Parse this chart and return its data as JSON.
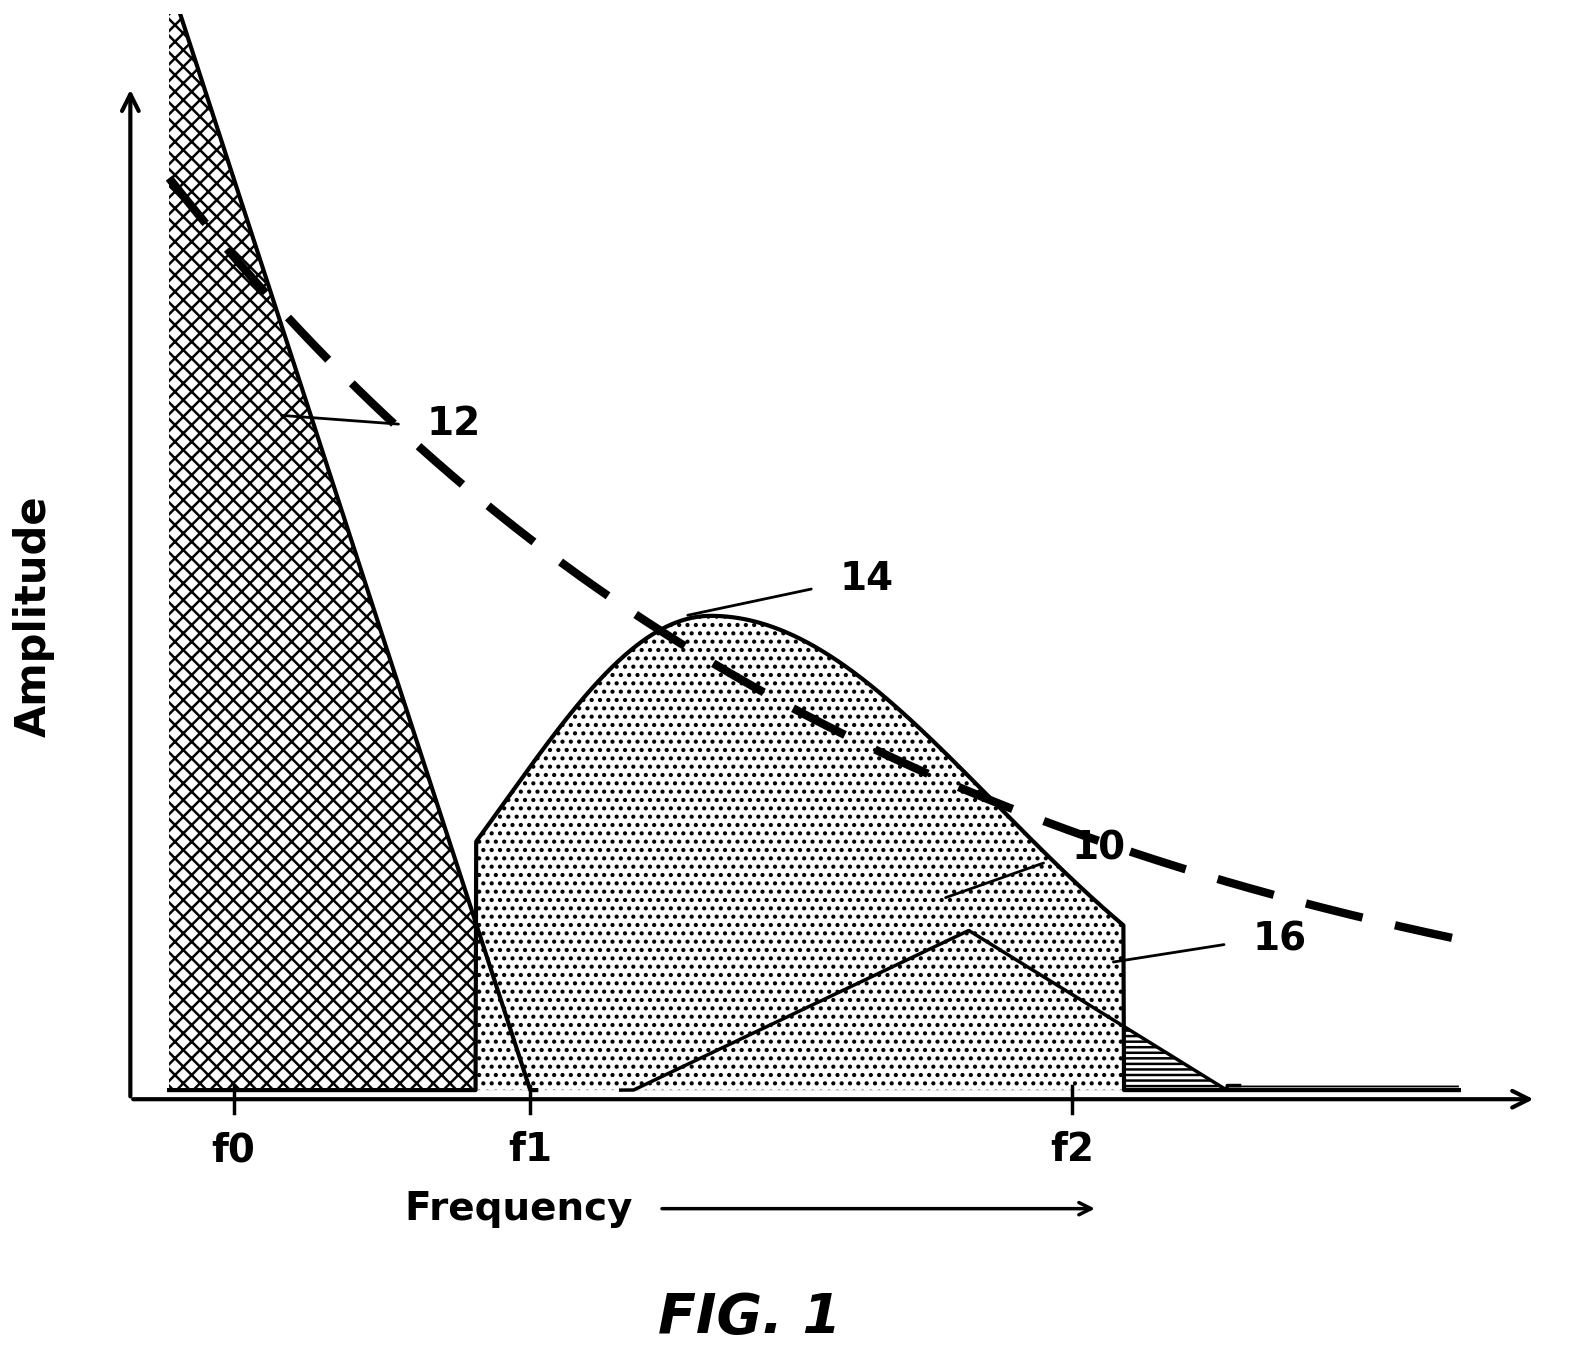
{
  "title": "FIG. 1",
  "xlabel": "Frequency",
  "ylabel": "Amplitude",
  "xtick_labels": [
    "f0",
    "f1",
    "f2"
  ],
  "xtick_positions": [
    0.05,
    0.28,
    0.7
  ],
  "background_color": "#ffffff",
  "f0": 0.05,
  "f1": 0.28,
  "f2": 0.7,
  "x_max": 1.0,
  "label_12": "12",
  "label_14": "14",
  "label_10": "10",
  "label_16": "16"
}
